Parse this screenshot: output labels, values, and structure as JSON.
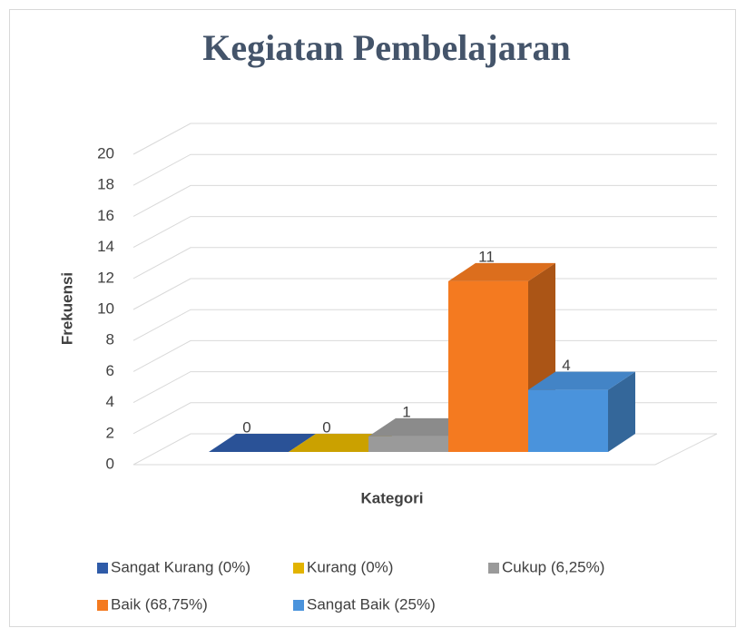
{
  "chart_data": {
    "type": "bar3d",
    "title": "Kegiatan Pembelajaran",
    "x_label": "Kategori",
    "y_label": "Frekuensi",
    "categories": [
      null
    ],
    "series": [
      {
        "name": "Sangat Kurang (0%)",
        "color": "#2f5ba8",
        "values": [
          0
        ]
      },
      {
        "name": "Kurang (0%)",
        "color": "#e2b300",
        "values": [
          0
        ]
      },
      {
        "name": "Cukup (6,25%)",
        "color": "#9a9a9a",
        "values": [
          1
        ]
      },
      {
        "name": "Baik (68,75%)",
        "color": "#f47a20",
        "values": [
          11
        ]
      },
      {
        "name": "Sangat Baik (25%)",
        "color": "#4a93dc",
        "values": [
          4
        ]
      }
    ],
    "ylim": [
      0,
      20
    ],
    "yticks": [
      0,
      2,
      4,
      6,
      8,
      10,
      12,
      14,
      16,
      18,
      20
    ],
    "grid": true,
    "legend": "bottom"
  }
}
